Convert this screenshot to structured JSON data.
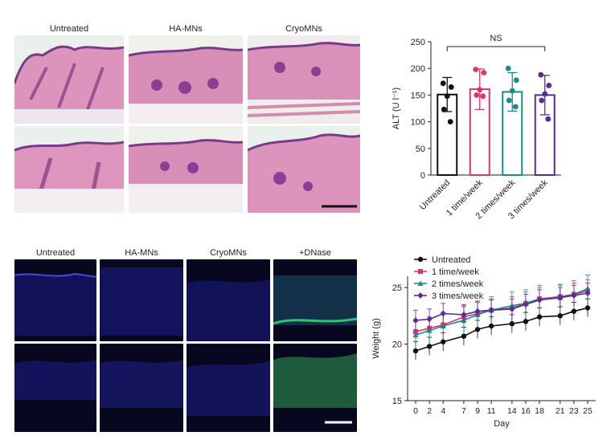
{
  "he_panel": {
    "columns": [
      "Untreated",
      "HA-MNs",
      "CryoMNs"
    ]
  },
  "fluor_panel": {
    "columns": [
      "Untreated",
      "HA-MNs",
      "CryoMNs",
      "+DNase"
    ]
  },
  "colors": {
    "he_tissue": "#d98fb8",
    "he_epidermis": "#7a3a8c",
    "he_fat": "#f4f0f2",
    "fluor_bg": "#06061e",
    "fluor_blue": "#3a3ad0",
    "fluor_green": "#38c070",
    "untreated": "#111111",
    "once": "#e0336e",
    "twice": "#1e8c86",
    "thrice": "#5a2a96"
  },
  "chart_data": [
    {
      "type": "bar",
      "categories": [
        "Untreated",
        "1 time/week",
        "2 times/week",
        "3 times/week"
      ],
      "values": [
        151,
        161,
        156,
        150
      ],
      "errors": [
        32,
        38,
        36,
        37
      ],
      "points": [
        [
          172,
          165,
          148,
          123,
          100
        ],
        [
          198,
          192,
          160,
          150,
          148
        ],
        [
          200,
          178,
          158,
          140,
          128
        ],
        [
          188,
          168,
          152,
          140,
          105
        ]
      ],
      "ylabel": "ALT (U l⁻¹)",
      "ylim": [
        0,
        250
      ],
      "yticks": [
        0,
        50,
        100,
        150,
        200,
        250
      ],
      "annotation": "NS"
    },
    {
      "type": "line",
      "x": [
        0,
        2,
        4,
        7,
        9,
        11,
        14,
        16,
        18,
        21,
        23,
        25
      ],
      "xlabel": "Day",
      "ylabel": "Weight (g)",
      "ylim": [
        15,
        26
      ],
      "yticks": [
        15,
        20,
        25
      ],
      "legend_position": "top-left",
      "series": [
        {
          "name": "Untreated",
          "marker": "circle",
          "values": [
            19.4,
            19.8,
            20.2,
            20.7,
            21.3,
            21.6,
            21.8,
            22.0,
            22.4,
            22.5,
            22.9,
            23.2
          ],
          "error": 0.8
        },
        {
          "name": "1 time/week",
          "marker": "square",
          "values": [
            21.1,
            21.4,
            21.7,
            22.4,
            22.7,
            23.0,
            23.2,
            23.6,
            24.0,
            24.2,
            24.4,
            24.7
          ],
          "error": 1.0
        },
        {
          "name": "2 times/week",
          "marker": "triangle",
          "values": [
            20.8,
            21.2,
            21.6,
            22.1,
            22.6,
            23.0,
            23.4,
            23.6,
            24.0,
            24.1,
            24.4,
            24.9
          ],
          "error": 1.2
        },
        {
          "name": "3 times/week",
          "marker": "diamond",
          "values": [
            22.1,
            22.2,
            22.7,
            22.6,
            22.9,
            23.0,
            23.1,
            23.5,
            23.9,
            24.1,
            24.3,
            24.5
          ],
          "error": 0.9
        }
      ]
    }
  ]
}
